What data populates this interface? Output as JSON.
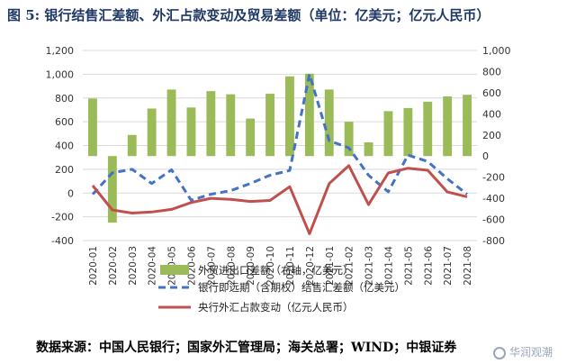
{
  "figure": {
    "title": "图 5: 银行结售汇差额、外汇占款变动及贸易差额（单位：亿美元；亿元人民币）",
    "source": "数据来源：中国人民银行；国家外汇管理局；海关总署；WIND；中银证券",
    "watermark": "华润观潮"
  },
  "chart_data": {
    "type": "bar+line",
    "categories": [
      "2020-01",
      "2020-02",
      "2020-03",
      "2020-04",
      "2020-05",
      "2020-06",
      "2020-07",
      "2020-08",
      "2020-09",
      "2020-10",
      "2020-11",
      "2020-12",
      "2021-01",
      "2021-02",
      "2021-03",
      "2021-04",
      "2021-05",
      "2021-06",
      "2021-07",
      "2021-08"
    ],
    "left_axis": {
      "min": -400,
      "max": 1200,
      "ticks": [
        -400,
        -200,
        0,
        200,
        400,
        600,
        800,
        1000,
        1200
      ],
      "tick_labels": [
        "-400",
        "-200",
        "0",
        "200",
        "400",
        "600",
        "800",
        "1,000",
        "1,200"
      ]
    },
    "right_axis": {
      "min": -800,
      "max": 1000,
      "ticks": [
        -800,
        -600,
        -400,
        -200,
        0,
        200,
        400,
        600,
        800,
        1000
      ],
      "tick_labels": [
        "-800",
        "-600",
        "-400",
        "-200",
        "0",
        "200",
        "400",
        "600",
        "800",
        "1,000"
      ]
    },
    "series": [
      {
        "name": "外贸进出口差额（右轴，亿美元）",
        "type": "bar",
        "axis": "right",
        "color": "#9bbb59",
        "values": [
          545,
          -630,
          200,
          450,
          630,
          460,
          615,
          585,
          355,
          590,
          755,
          780,
          630,
          325,
          130,
          425,
          455,
          515,
          565,
          580
        ]
      },
      {
        "name": "银行即远期（含期权）结售汇差额（亿美元）",
        "type": "line",
        "axis": "left",
        "color": "#4472c4",
        "dash": true,
        "values": [
          -10,
          170,
          200,
          80,
          195,
          -60,
          -10,
          20,
          80,
          150,
          190,
          1000,
          440,
          380,
          150,
          10,
          320,
          265,
          120,
          -10
        ]
      },
      {
        "name": "央行外汇占款变动（亿元人民币）",
        "type": "line",
        "axis": "right",
        "color": "#c0504d",
        "values": [
          -280,
          -510,
          -540,
          -530,
          -505,
          -440,
          -400,
          -410,
          -430,
          -420,
          -290,
          -735,
          -260,
          -90,
          -460,
          -160,
          -115,
          -135,
          -340,
          -385
        ]
      }
    ]
  }
}
